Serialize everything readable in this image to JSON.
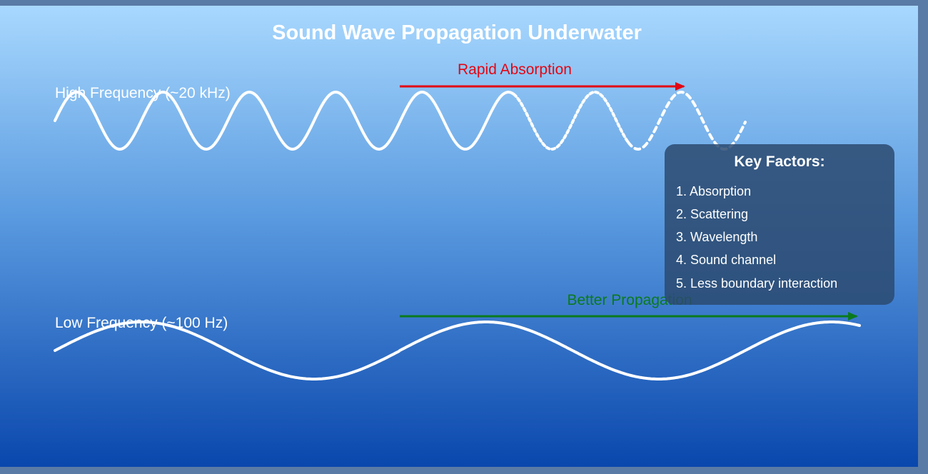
{
  "title": "Sound Wave Propagation Underwater",
  "high_frequency": {
    "label": "High Frequency (~20 kHz)",
    "arrow_label": "Rapid Absorption",
    "arrow_color": "#e30613"
  },
  "low_frequency": {
    "label": "Low Frequency (~100 Hz)",
    "arrow_label": "Better Propagation",
    "arrow_color": "#0a7a1c"
  },
  "key_factors": {
    "title": "Key Factors:",
    "items": [
      "1. Absorption",
      "2. Scattering",
      "3. Wavelength",
      "4. Sound channel",
      "5. Less boundary interaction"
    ]
  },
  "colors": {
    "background_top": "#a8d8fe",
    "background_bottom": "#0a47ad",
    "wave": "#ffffff",
    "box": "#2c4a70"
  }
}
